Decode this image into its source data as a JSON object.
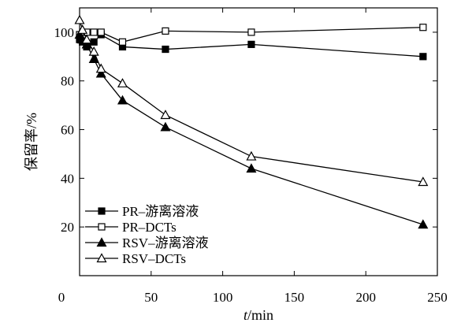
{
  "chart_data": {
    "type": "line",
    "xlabel_italic": "t",
    "xlabel_unit": "/min",
    "ylabel": "保留率/%",
    "xlim": [
      0,
      250
    ],
    "ylim": [
      0,
      110
    ],
    "xticks": [
      0,
      50,
      100,
      150,
      200,
      250
    ],
    "yticks": [
      20,
      40,
      60,
      80,
      100
    ],
    "grid": false,
    "legend_position": "bottom-left",
    "series": [
      {
        "name": "PR–游离溶液",
        "marker": "square-filled",
        "x": [
          0,
          2,
          5,
          10,
          15,
          30,
          60,
          120,
          240
        ],
        "y": [
          97,
          96,
          94,
          96,
          99,
          94,
          93,
          95,
          90
        ]
      },
      {
        "name": "PR–DCTs",
        "marker": "square-open",
        "x": [
          0,
          2,
          5,
          10,
          15,
          30,
          60,
          120,
          240
        ],
        "y": [
          99,
          99,
          100,
          100,
          100,
          96,
          100.5,
          100,
          102
        ]
      },
      {
        "name": "RSV–游离溶液",
        "marker": "triangle-filled",
        "x": [
          0,
          2,
          5,
          10,
          15,
          30,
          60,
          120,
          240
        ],
        "y": [
          99,
          97,
          95,
          89,
          83,
          72,
          61,
          44,
          21
        ]
      },
      {
        "name": "RSV–DCTs",
        "marker": "triangle-open",
        "x": [
          0,
          2,
          5,
          10,
          15,
          30,
          60,
          120,
          240
        ],
        "y": [
          105,
          101,
          97,
          92,
          85,
          79,
          66,
          49,
          38.5
        ]
      }
    ]
  }
}
